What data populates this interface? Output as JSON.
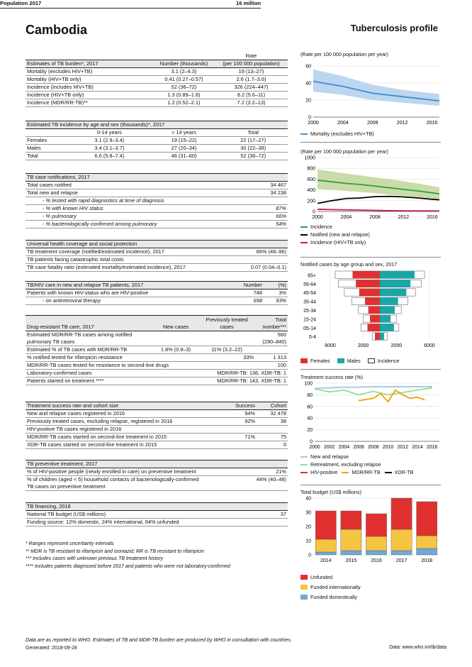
{
  "header": {
    "country": "Cambodia",
    "profile": "Tuberculosis profile",
    "population_label": "Population 2017",
    "population_value": "16 million"
  },
  "burden": {
    "title": "Estimates of TB burden*, 2017",
    "col_num": "Number (thousands)",
    "col_rate1": "Rate",
    "col_rate2": "(per 100 000 population)",
    "rows": [
      {
        "label": "Mortality (excludes HIV+TB)",
        "num": "3.1 (2–4.3)",
        "rate": "19 (13–27)"
      },
      {
        "label": "Mortality (HIV+TB only)",
        "num": "0.41 (0.27–0.57)",
        "rate": "2.6 (1.7–3.6)"
      },
      {
        "label": "Incidence (includes HIV+TB)",
        "num": "52 (36–72)",
        "rate": "326 (224–447)"
      },
      {
        "label": "Incidence (HIV+TB only)",
        "num": "1.3 (0.89–1.8)",
        "rate": "8.2 (5.6–11)"
      },
      {
        "label": "Incidence (MDR/RR-TB)**",
        "num": "1.2 (0.52–2.1)",
        "rate": "7.2 (3.2–13)"
      }
    ]
  },
  "agesex": {
    "title": "Estimated TB incidence by age and sex (thousands)*, 2017",
    "c1": "0-14 years",
    "c2": "> 14 years",
    "c3": "Total",
    "rows": [
      {
        "label": "Females",
        "a": "3.1 (2.9–3.4)",
        "b": "19 (15–22)",
        "t": "22 (17–27)"
      },
      {
        "label": "Males",
        "a": "3.4 (3.1–3.7)",
        "b": "27 (20–34)",
        "t": "30 (22–38)"
      },
      {
        "label": "Total",
        "a": "6.6 (5.8–7.4)",
        "b": "46 (31–60)",
        "t": "52 (36–72)"
      }
    ]
  },
  "notif": {
    "title": "TB case notifications, 2017",
    "rows": [
      {
        "label": "Total cases notified",
        "v": "34 467"
      },
      {
        "label": "Total new and relapse",
        "v": "34 238"
      },
      {
        "label": "- % tested with rapid diagnostics at time of diagnosis",
        "v": ""
      },
      {
        "label": "- % with known HIV status",
        "v": "87%"
      },
      {
        "label": "- % pulmonary",
        "v": "66%"
      },
      {
        "label": "- % bacteriologically confirmed among pulmonary",
        "v": "54%"
      }
    ]
  },
  "uhc": {
    "title": "Universal health coverage and social protection",
    "rows": [
      {
        "label": "TB treatment coverage (notified/estimated incidence), 2017",
        "v": "66% (48–96)"
      },
      {
        "label": "TB patients facing catastrophic total costs",
        "v": ""
      },
      {
        "label": "TB case fatality ratio (estimated mortality/estimated incidence), 2017",
        "v": "0.07 (0.04–0.1)"
      }
    ]
  },
  "hiv": {
    "title": "TB/HIV care in new and relapse TB patients, 2017",
    "c1": "Number",
    "c2": "(%)",
    "rows": [
      {
        "label": "Patients with known HIV-status who are HIV-positive",
        "n": "748",
        "p": "3%"
      },
      {
        "label": "- on antiretroviral therapy",
        "n": "698",
        "p": "93%"
      }
    ]
  },
  "dr": {
    "title": "Drug-resistant TB care, 2017",
    "c1": "New cases",
    "c2a": "Previously treated",
    "c2b": "cases",
    "c3a": "Total",
    "c3b": "number***",
    "r1a": "Estimated MDR/RR-TB cases among notified",
    "r1b": "pulmonary TB cases",
    "r1v": "560",
    "r1r": "(290–840)",
    "r2": "Estimated % of TB cases with MDR/RR-TB",
    "r2n": "1.8% (0.9–3)",
    "r2p": "11% (3.2–22)",
    "r3": "% notified tested for rifampicin resistance",
    "r3p": "33%",
    "r3t": "1 313",
    "r4": "MDR/RR-TB cases tested for resistance to second-line drugs",
    "r4t": "100",
    "r5": "Laboratory-confirmed cases",
    "r5v": "MDR/RR-TB: 136, XDR-TB: 1",
    "r6": "Patients started on treatment ****",
    "r6v": "MDR/RR-TB: 143, XDR-TB: 1"
  },
  "outcome": {
    "title": "Treatment success rate and cohort size",
    "c1": "Success",
    "c2": "Cohort",
    "rows": [
      {
        "label": "New and relapse cases registered in 2016",
        "s": "94%",
        "c": "32 478"
      },
      {
        "label": "Previously treated cases, excluding relapse, registered in 2016",
        "s": "92%",
        "c": "38"
      },
      {
        "label": "HIV-positive TB cases registered in 2016",
        "s": "",
        "c": ""
      },
      {
        "label": "MDR/RR-TB cases started on second-line treatment in 2015",
        "s": "71%",
        "c": "75"
      },
      {
        "label": "XDR-TB cases started on second-line treatment in 2015",
        "s": "",
        "c": "0"
      }
    ]
  },
  "prev": {
    "title": "TB preventive treatment, 2017",
    "r1": "% of HIV-positive people (newly enrolled in care) on preventive treatment",
    "r1v": "21%",
    "r2a": "% of children (aged < 5) household contacts of bacteriologically-confirmed",
    "r2b": "TB cases on preventive treatment",
    "r2v": "44% (40–48)"
  },
  "fin": {
    "title": "TB financing, 2018",
    "r1": "National TB budget (US$ millions)",
    "r1v": "37",
    "r2": "Funding source: 12% domestic, 24% international, 64% unfunded"
  },
  "notes": [
    "* Ranges represent uncertainty intervals",
    "** MDR is TB resistant to rifampicin and isoniazid; RR is TB resistant to rifampicin",
    "*** Includes cases with unknown previous TB treatment history",
    "**** Includes patients diagnosed before 2017 and patients who were not laboratory-confirmed"
  ],
  "footer": {
    "line1": "Data are as reported to WHO. Estimates of TB and MDR-TB burden are produced by WHO in consultation with countries.",
    "line2": "Generated: 2018-09-28",
    "right": "Data: www.who.int/tb/data"
  },
  "colors": {
    "blue": "#3a8fd0",
    "blue_band": "#bcd6ef",
    "green": "#2e9e47",
    "green_band": "#c9dca8",
    "black": "#000000",
    "pink": "#c2185b",
    "red": "#e03030",
    "teal": "#1aa6a6",
    "orange": "#f0a000",
    "light_green": "#90e090",
    "light_blue": "#9fc8ee",
    "yellow": "#f4c542"
  },
  "chart_data": [
    {
      "type": "line",
      "title": "(Rate per 100 000 population per year)",
      "x": [
        2000,
        2004,
        2008,
        2012,
        2016,
        2017
      ],
      "xticks": [
        "2000",
        "2004",
        "2008",
        "2012",
        "2016"
      ],
      "yticks": [
        "0",
        "20",
        "40",
        "60"
      ],
      "ylim": [
        0,
        65
      ],
      "series": [
        {
          "name": "Mortality (excludes HIV+TB)",
          "values": [
            42,
            36,
            28,
            24,
            20,
            19
          ],
          "low": [
            30,
            26,
            20,
            17,
            14,
            13
          ],
          "high": [
            56,
            48,
            38,
            32,
            28,
            27
          ]
        }
      ]
    },
    {
      "type": "line",
      "title": "(Rate per 100 000 population per year)",
      "x": [
        2000,
        2002,
        2004,
        2006,
        2008,
        2010,
        2012,
        2014,
        2016,
        2017
      ],
      "xticks": [
        "2000",
        "2004",
        "2008",
        "2012",
        "2016"
      ],
      "yticks": [
        "0",
        "200",
        "400",
        "600",
        "800",
        "1000"
      ],
      "ylim": [
        0,
        1000
      ],
      "series": [
        {
          "name": "Incidence",
          "values": [
            580,
            550,
            520,
            500,
            470,
            440,
            410,
            380,
            345,
            326
          ],
          "low": [
            420,
            400,
            380,
            360,
            340,
            310,
            290,
            265,
            240,
            224
          ],
          "high": [
            780,
            740,
            700,
            670,
            630,
            600,
            560,
            520,
            470,
            447
          ]
        },
        {
          "name": "Notified (new and relapse)",
          "values": [
            150,
            200,
            240,
            250,
            275,
            280,
            270,
            250,
            225,
            215
          ]
        },
        {
          "name": "Incidence (HIV+TB only)",
          "values": [
            40,
            35,
            30,
            25,
            20,
            15,
            12,
            10,
            9,
            8
          ]
        }
      ]
    },
    {
      "type": "bar",
      "title": "Notified cases by age group and sex, 2017",
      "categories": [
        "0-4",
        "05-14",
        "15-24",
        "25-34",
        "35-44",
        "45-54",
        "55-64",
        "65+"
      ],
      "xticks": [
        "6000",
        "2000",
        "2000",
        "6000"
      ],
      "xlim": [
        -6000,
        6000
      ],
      "series": [
        {
          "name": "Females",
          "values": [
            600,
            1500,
            1200,
            1400,
            1800,
            2500,
            2900,
            3300
          ]
        },
        {
          "name": "Males",
          "values": [
            500,
            1700,
            1300,
            1800,
            2200,
            3200,
            3700,
            4200
          ]
        },
        {
          "name": "Incidence",
          "values": [
            900,
            2300,
            2000,
            2600,
            3400,
            4300,
            5000,
            5400
          ]
        }
      ]
    },
    {
      "type": "line",
      "title": "Treatment success rate (%)",
      "x": [
        2000,
        2002,
        2004,
        2006,
        2008,
        2010,
        2012,
        2014,
        2016
      ],
      "xticks": [
        "2000",
        "2002",
        "2004",
        "2006",
        "2008",
        "2010",
        "2012",
        "2014",
        "2016"
      ],
      "yticks": [
        "0",
        "20",
        "40",
        "60",
        "80",
        "100"
      ],
      "ylim": [
        0,
        100
      ],
      "series": [
        {
          "name": "New and relapse",
          "values": [
            91,
            92,
            93,
            93,
            94,
            94,
            94,
            94,
            94
          ]
        },
        {
          "name": "Retreatment, excluding relapse",
          "values": [
            90,
            85,
            88,
            80,
            86,
            80,
            84,
            88,
            92
          ]
        },
        {
          "name": "HIV-positive",
          "values": [
            null,
            null,
            null,
            null,
            null,
            null,
            null,
            null,
            null
          ]
        },
        {
          "name": "MDR/RR-TB",
          "x": [
            2006,
            2007,
            2008,
            2009,
            2010,
            2011,
            2012,
            2013,
            2014,
            2015
          ],
          "values": [
            70,
            72,
            74,
            82,
            68,
            88,
            80,
            74,
            76,
            71
          ]
        },
        {
          "name": "XDR-TB",
          "values": [
            null,
            null,
            null,
            null,
            null,
            null,
            null,
            null,
            null
          ]
        }
      ]
    },
    {
      "type": "bar",
      "title": "Total budget (US$ millions)",
      "categories": [
        "2014",
        "2015",
        "2016",
        "2017",
        "2018"
      ],
      "yticks": [
        "0",
        "10",
        "20",
        "30",
        "40"
      ],
      "ylim": [
        0,
        40
      ],
      "series": [
        {
          "name": "Funded domestically",
          "values": [
            2,
            3,
            3,
            3,
            4.5
          ]
        },
        {
          "name": "Funded internationally",
          "values": [
            9,
            15,
            10,
            15,
            9
          ]
        },
        {
          "name": "Unfunded",
          "values": [
            20,
            13,
            16,
            22,
            24
          ]
        }
      ]
    }
  ]
}
